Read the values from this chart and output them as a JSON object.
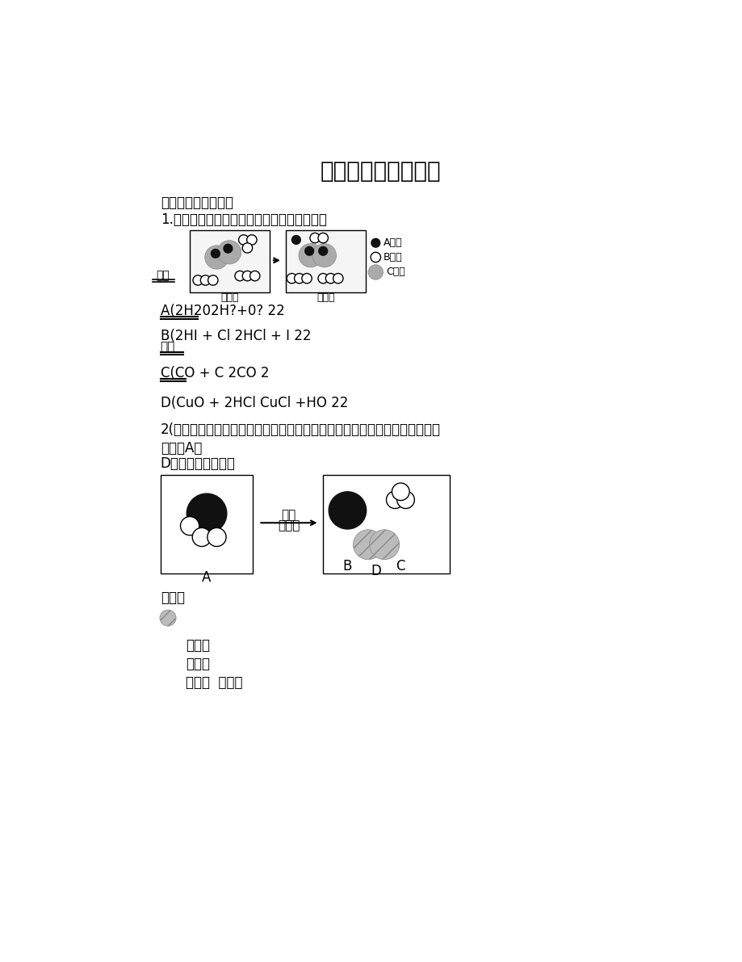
{
  "title": "化学变化微观结构图",
  "subtitle": "化学变化微观结构图",
  "q1_text": "1.下列化学可以用右边的微观示意图表示的是",
  "q1_a": "A(2H202H?+0? 22",
  "q1_b": "B(2HI + Cl 2HCl + I 22",
  "q1_c": "C(CO + C 2CO 2",
  "q1_d": "D(CuO + 2HCl CuCl +HO 22",
  "q2_intro": "2(下图描述的是某反应在同一容器中反应前后部分分子种类的微观示意图，该",
  "q2_intro2": "反应中A与",
  "q2_intro3": "D的微粒数目之比为",
  "label_before": "反应前",
  "label_after": "反应后",
  "legend_A": "A原子",
  "legend_B": "B原子",
  "legend_C": "C原子",
  "tong_dian": "通电",
  "gao_wen": "高温",
  "jia_re_1": "加热",
  "jia_re_2": "催化剂",
  "label_A": "A",
  "label_B": "B",
  "label_C": "C",
  "label_D": "D",
  "legend2_N": "氮原子",
  "legend2_O": "氧原子",
  "legend2_H": "氢原子",
  "legend2_reaction": "反应前  反应后",
  "bg_color": "#ffffff",
  "text_color": "#000000"
}
